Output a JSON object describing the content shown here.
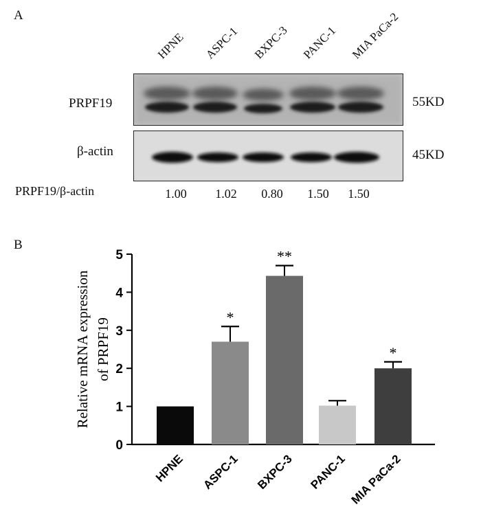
{
  "panel_a": {
    "label": "A",
    "lanes": [
      "HPNE",
      "ASPC-1",
      "BXPC-3",
      "PANC-1",
      "MIA PaCa-2"
    ],
    "rows": [
      {
        "protein": "PRPF19",
        "size": "55KD"
      },
      {
        "protein": "β-actin",
        "size": "45KD"
      }
    ],
    "ratio_label": "PRPF19/β-actin",
    "ratios": [
      "1.00",
      "1.02",
      "0.80",
      "1.50",
      "1.50"
    ]
  },
  "panel_b": {
    "label": "B"
  },
  "chart_data": {
    "type": "bar",
    "categories": [
      "HPNE",
      "ASPC-1",
      "BXPC-3",
      "PANC-1",
      "MIA PaCa-2"
    ],
    "values": [
      1.0,
      2.7,
      4.43,
      1.02,
      2.0
    ],
    "errors": [
      0,
      0.4,
      0.27,
      0.13,
      0.17
    ],
    "significance": [
      "",
      "*",
      "**",
      "",
      "*"
    ],
    "colors": [
      "#0a0a0a",
      "#8a8a8a",
      "#6a6a6a",
      "#c8c8c8",
      "#3e3e3e"
    ],
    "title": "",
    "xlabel": "",
    "ylabel_lines": [
      "Relative mRNA expression",
      "of PRPF19"
    ],
    "ylim": [
      0,
      5
    ],
    "yticks": [
      0,
      1,
      2,
      3,
      4,
      5
    ],
    "grid": false
  }
}
